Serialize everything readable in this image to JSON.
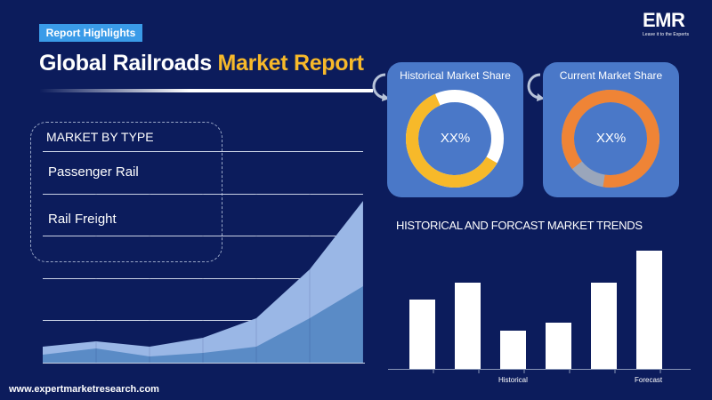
{
  "header": {
    "badge": "Report Highlights",
    "title_part1": "Global Railroads ",
    "title_part2": "Market Report"
  },
  "logo": {
    "name": "EMR",
    "tagline": "Leave it to the Experts"
  },
  "market_by_type": {
    "heading": "MARKET BY TYPE",
    "items": [
      "Passenger  Rail",
      "Rail Freight"
    ]
  },
  "historical_share": {
    "title": "Historical Market Share",
    "value": "XX%",
    "ring_color": "#f7b92a",
    "ring_rest_color": "#ffffff",
    "fill_fraction": 0.6
  },
  "current_share": {
    "title": "Current Market Share",
    "value": "XX%",
    "ring_color": "#ef8436",
    "ring_rest_color": "#9aa6bb",
    "fill_fraction": 0.88
  },
  "area_chart": {
    "series": [
      {
        "color": "#9ab7e6",
        "values": [
          18,
          24,
          18,
          28,
          50,
          105,
          182
        ]
      },
      {
        "color": "#5a8bc6",
        "values": [
          9,
          16,
          7,
          11,
          18,
          50,
          86
        ]
      }
    ]
  },
  "chart_data": {
    "type": "bar",
    "title": "HISTORICAL AND FORCAST MARKET TRENDS",
    "categories": [
      "",
      "Historical",
      "",
      "",
      "Forecast",
      ""
    ],
    "category_labels": [
      "Historical",
      "Forecast"
    ],
    "values": [
      78,
      97,
      43,
      52,
      97,
      133
    ],
    "bar_color": "#ffffff"
  },
  "footer": {
    "url": "www.expertmarketresearch.com"
  }
}
